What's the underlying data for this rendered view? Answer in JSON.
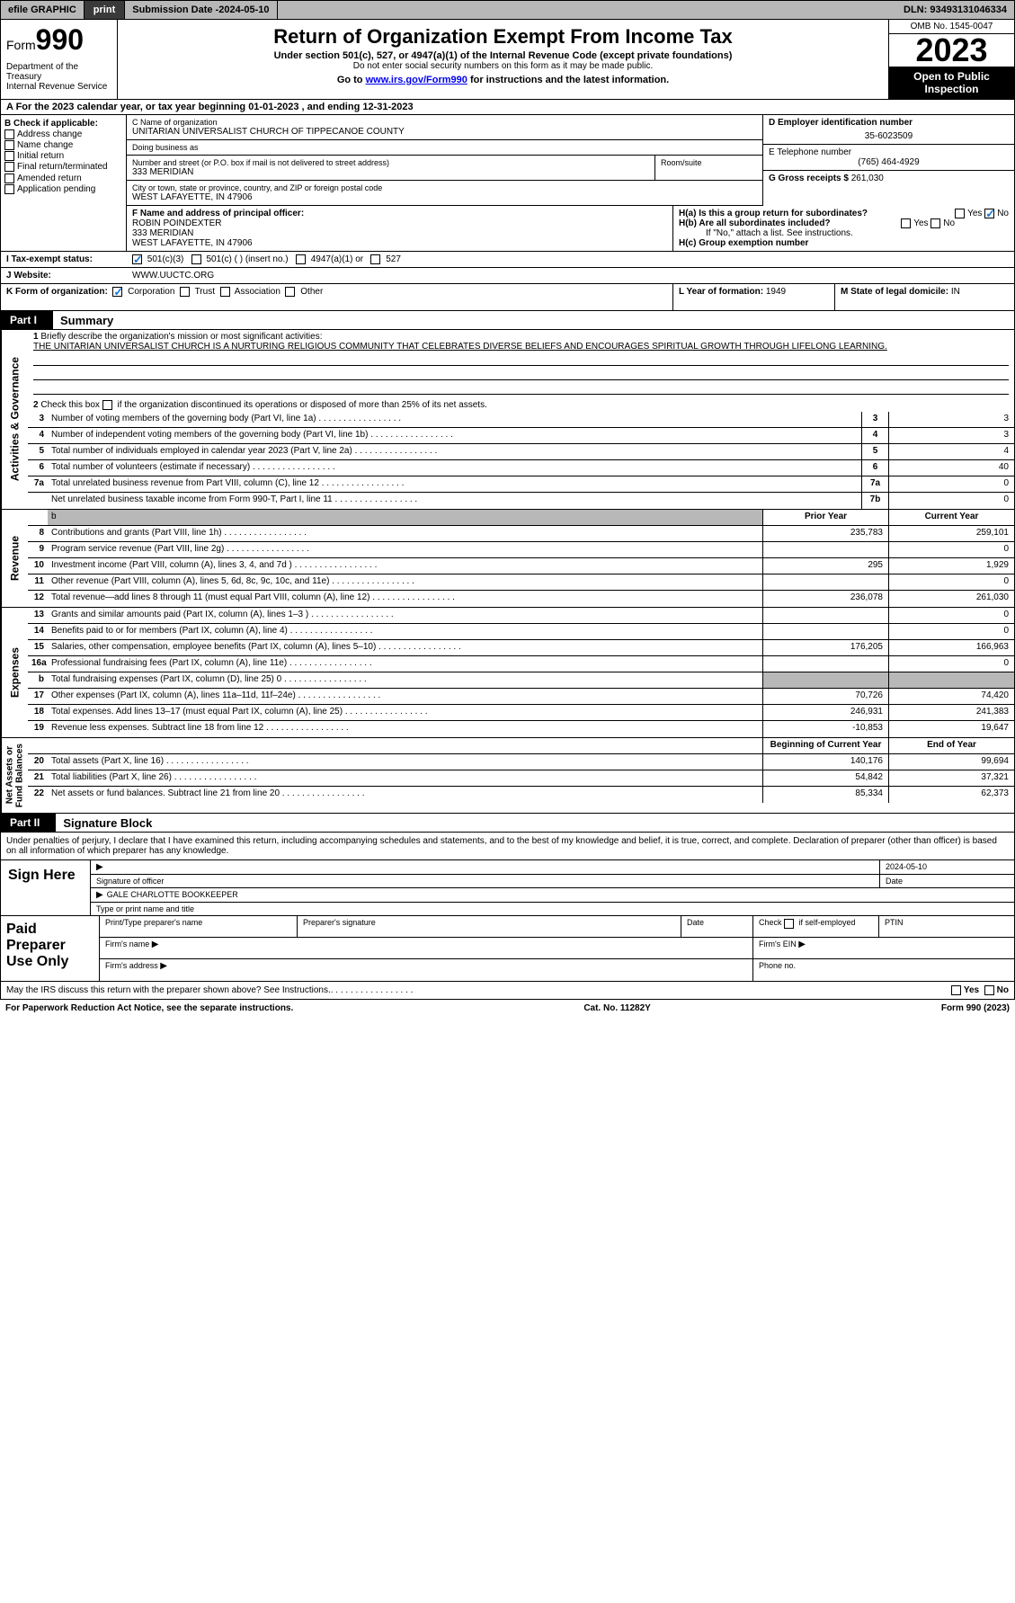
{
  "topbar": {
    "efile": "efile GRAPHIC",
    "print": "print",
    "subdate_lbl": "Submission Date - ",
    "subdate": "2024-05-10",
    "dln_lbl": "DLN: ",
    "dln": "93493131046334"
  },
  "header": {
    "form_prefix": "Form",
    "form_num": "990",
    "dept": "Department of the Treasury\nInternal Revenue Service",
    "title": "Return of Organization Exempt From Income Tax",
    "sub1": "Under section 501(c), 527, or 4947(a)(1) of the Internal Revenue Code (except private foundations)",
    "sub2": "Do not enter social security numbers on this form as it may be made public.",
    "goto_pre": "Go to ",
    "goto_link": "www.irs.gov/Form990",
    "goto_post": " for instructions and the latest information.",
    "omb": "OMB No. 1545-0047",
    "year": "2023",
    "open": "Open to Public Inspection"
  },
  "lineA": "A For the 2023 calendar year, or tax year beginning 01-01-2023    , and ending 12-31-2023",
  "boxB": {
    "title": "B Check if applicable:",
    "opts": [
      "Address change",
      "Name change",
      "Initial return",
      "Final return/terminated",
      "Amended return",
      "Application pending"
    ]
  },
  "boxC": {
    "name_lbl": "C Name of organization",
    "name": "UNITARIAN UNIVERSALIST CHURCH OF TIPPECANOE COUNTY",
    "dba_lbl": "Doing business as",
    "dba": "",
    "street_lbl": "Number and street (or P.O. box if mail is not delivered to street address)",
    "street": "333 MERIDIAN",
    "suite_lbl": "Room/suite",
    "city_lbl": "City or town, state or province, country, and ZIP or foreign postal code",
    "city": "WEST LAFAYETTE, IN  47906"
  },
  "boxD": {
    "lbl": "D Employer identification number",
    "val": "35-6023509"
  },
  "boxE": {
    "lbl": "E Telephone number",
    "val": "(765) 464-4929"
  },
  "boxF": {
    "lbl": "F  Name and address of principal officer:",
    "name": "ROBIN POINDEXTER",
    "street": "333 MERIDIAN",
    "city": "WEST LAFAYETTE, IN  47906"
  },
  "boxG": {
    "lbl": "G Gross receipts $ ",
    "val": "261,030"
  },
  "boxH": {
    "a": "H(a)  Is this a group return for subordinates?",
    "b": "H(b)  Are all subordinates included?",
    "note": "If \"No,\" attach a list. See instructions.",
    "c": "H(c)  Group exemption number ",
    "yes": "Yes",
    "no": "No"
  },
  "boxI": {
    "lbl": "I    Tax-exempt status:",
    "o1": "501(c)(3)",
    "o2": "501(c) (  ) (insert no.)",
    "o3": "4947(a)(1) or",
    "o4": "527"
  },
  "boxJ": {
    "lbl": "J    Website: ",
    "val": "WWW.UUCTC.ORG"
  },
  "boxK": {
    "lbl": "K Form of organization:",
    "o1": "Corporation",
    "o2": "Trust",
    "o3": "Association",
    "o4": "Other"
  },
  "boxL": {
    "lbl": "L Year of formation: ",
    "val": "1949"
  },
  "boxM": {
    "lbl": "M State of legal domicile: ",
    "val": "IN"
  },
  "parts": {
    "p1": "Part I",
    "p1t": "Summary",
    "p2": "Part II",
    "p2t": "Signature Block"
  },
  "vtabs": {
    "ag": "Activities & Governance",
    "rev": "Revenue",
    "exp": "Expenses",
    "net": "Net Assets or\nFund Balances"
  },
  "summary": {
    "l1_lbl": "Briefly describe the organization's mission or most significant activities:",
    "l1_txt": "THE UNITARIAN UNIVERSALIST CHURCH IS A NURTURING RELIGIOUS COMMUNITY THAT CELEBRATES DIVERSE BELIEFS AND ENCOURAGES SPIRITUAL GROWTH THROUGH LIFELONG LEARNING.",
    "l2": "Check this box        if the organization discontinued its operations or disposed of more than 25% of its net assets.",
    "rows_keyed": [
      {
        "n": "3",
        "t": "Number of voting members of the governing body (Part VI, line 1a)",
        "k": "3",
        "v": "3"
      },
      {
        "n": "4",
        "t": "Number of independent voting members of the governing body (Part VI, line 1b)",
        "k": "4",
        "v": "3"
      },
      {
        "n": "5",
        "t": "Total number of individuals employed in calendar year 2023 (Part V, line 2a)",
        "k": "5",
        "v": "4"
      },
      {
        "n": "6",
        "t": "Total number of volunteers (estimate if necessary)",
        "k": "6",
        "v": "40"
      },
      {
        "n": "7a",
        "t": "Total unrelated business revenue from Part VIII, column (C), line 12",
        "k": "7a",
        "v": "0"
      },
      {
        "n": "",
        "t": "Net unrelated business taxable income from Form 990-T, Part I, line 11",
        "k": "7b",
        "v": "0"
      }
    ],
    "hdr_prior": "Prior Year",
    "hdr_curr": "Current Year",
    "rev": [
      {
        "n": "8",
        "t": "Contributions and grants (Part VIII, line 1h)",
        "p": "235,783",
        "c": "259,101"
      },
      {
        "n": "9",
        "t": "Program service revenue (Part VIII, line 2g)",
        "p": "",
        "c": "0"
      },
      {
        "n": "10",
        "t": "Investment income (Part VIII, column (A), lines 3, 4, and 7d )",
        "p": "295",
        "c": "1,929"
      },
      {
        "n": "11",
        "t": "Other revenue (Part VIII, column (A), lines 5, 6d, 8c, 9c, 10c, and 11e)",
        "p": "",
        "c": "0"
      },
      {
        "n": "12",
        "t": "Total revenue—add lines 8 through 11 (must equal Part VIII, column (A), line 12)",
        "p": "236,078",
        "c": "261,030"
      }
    ],
    "exp": [
      {
        "n": "13",
        "t": "Grants and similar amounts paid (Part IX, column (A), lines 1–3 )",
        "p": "",
        "c": "0"
      },
      {
        "n": "14",
        "t": "Benefits paid to or for members (Part IX, column (A), line 4)",
        "p": "",
        "c": "0"
      },
      {
        "n": "15",
        "t": "Salaries, other compensation, employee benefits (Part IX, column (A), lines 5–10)",
        "p": "176,205",
        "c": "166,963"
      },
      {
        "n": "16a",
        "t": "Professional fundraising fees (Part IX, column (A), line 11e)",
        "p": "",
        "c": "0"
      },
      {
        "n": "b",
        "t": "Total fundraising expenses (Part IX, column (D), line 25) 0",
        "p": "GREY",
        "c": "GREY"
      },
      {
        "n": "17",
        "t": "Other expenses (Part IX, column (A), lines 11a–11d, 11f–24e)",
        "p": "70,726",
        "c": "74,420"
      },
      {
        "n": "18",
        "t": "Total expenses. Add lines 13–17 (must equal Part IX, column (A), line 25)",
        "p": "246,931",
        "c": "241,383"
      },
      {
        "n": "19",
        "t": "Revenue less expenses. Subtract line 18 from line 12",
        "p": "-10,853",
        "c": "19,647"
      }
    ],
    "hdr_beg": "Beginning of Current Year",
    "hdr_end": "End of Year",
    "net": [
      {
        "n": "20",
        "t": "Total assets (Part X, line 16)",
        "p": "140,176",
        "c": "99,694"
      },
      {
        "n": "21",
        "t": "Total liabilities (Part X, line 26)",
        "p": "54,842",
        "c": "37,321"
      },
      {
        "n": "22",
        "t": "Net assets or fund balances. Subtract line 21 from line 20",
        "p": "85,334",
        "c": "62,373"
      }
    ]
  },
  "sig": {
    "intro": "Under penalties of perjury, I declare that I have examined this return, including accompanying schedules and statements, and to the best of my knowledge and belief, it is true, correct, and complete. Declaration of preparer (other than officer) is based on all information of which preparer has any knowledge.",
    "here": "Sign Here",
    "sig_lbl": "Signature of officer",
    "date_lbl": "Date",
    "date": "2024-05-10",
    "name": "GALE CHARLOTTE  BOOKKEEPER",
    "type_lbl": "Type or print name and title"
  },
  "prep": {
    "title": "Paid Preparer Use Only",
    "h1": "Print/Type preparer's name",
    "h2": "Preparer's signature",
    "h3": "Date",
    "h4": "Check        if self-employed",
    "h5": "PTIN",
    "f1": "Firm's name",
    "f2": "Firm's EIN",
    "f3": "Firm's address",
    "f4": "Phone no."
  },
  "discuss": {
    "txt": "May the IRS discuss this return with the preparer shown above? See Instructions.",
    "yes": "Yes",
    "no": "No"
  },
  "footer": {
    "l": "For Paperwork Reduction Act Notice, see the separate instructions.",
    "m": "Cat. No. 11282Y",
    "r": "Form 990 (2023)"
  },
  "colors": {
    "grey": "#b8b8b8",
    "link": "#0000ee",
    "check": "#1976d2"
  }
}
